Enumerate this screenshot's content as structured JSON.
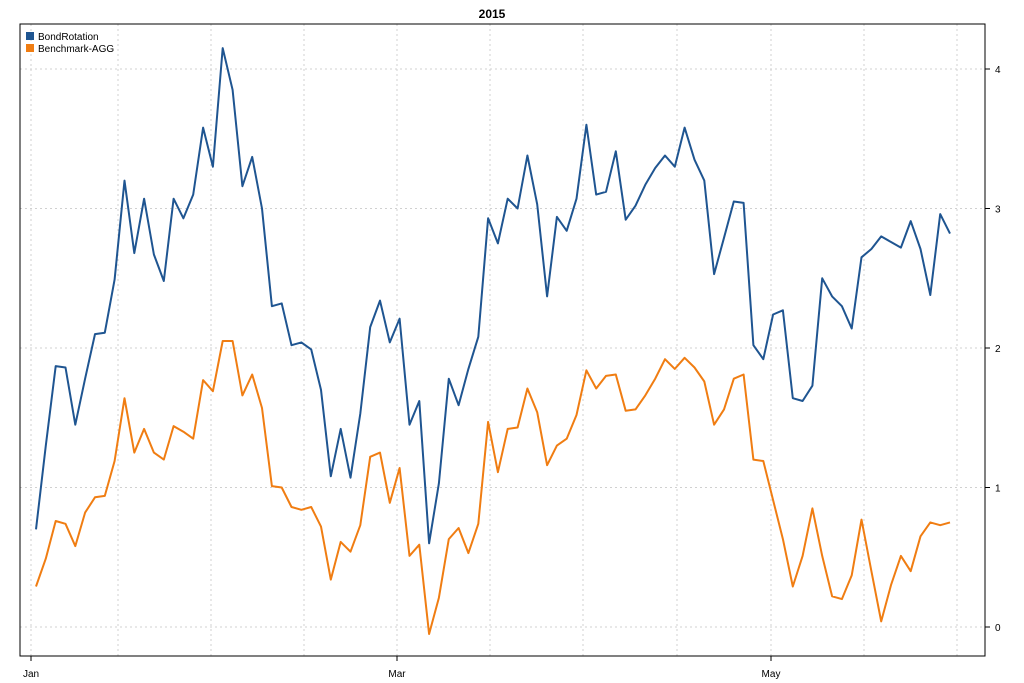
{
  "chart_data": {
    "type": "line",
    "title": "2015",
    "xlabel": "",
    "ylabel": "",
    "x_ticks": [
      "Jan",
      "Mar",
      "May"
    ],
    "y_ticks": [
      "0",
      "1",
      "2",
      "3",
      "4"
    ],
    "ylim": [
      -0.05,
      4.2
    ],
    "y_axis_side": "right",
    "grid": true,
    "legend_position": "top-left",
    "series": [
      {
        "name": "BondRotation",
        "color": "#1f5591",
        "values": [
          0.7,
          1.3,
          1.87,
          1.86,
          1.45,
          1.78,
          2.1,
          2.11,
          2.49,
          3.2,
          2.68,
          3.07,
          2.67,
          2.48,
          3.07,
          2.93,
          3.1,
          3.58,
          3.3,
          4.15,
          3.85,
          3.16,
          3.37,
          3.0,
          2.3,
          2.32,
          2.02,
          2.04,
          1.99,
          1.7,
          1.08,
          1.42,
          1.07,
          1.53,
          2.15,
          2.34,
          2.04,
          2.21,
          1.45,
          1.62,
          0.6,
          1.03,
          1.78,
          1.59,
          1.85,
          2.08,
          2.93,
          2.75,
          3.07,
          3.0,
          3.38,
          3.03,
          2.37,
          2.94,
          2.84,
          3.07,
          3.6,
          3.1,
          3.12,
          3.41,
          2.92,
          3.02,
          3.17,
          3.29,
          3.38,
          3.3,
          3.58,
          3.35,
          3.2,
          2.53,
          2.79,
          3.05,
          3.04,
          2.02,
          1.92,
          2.24,
          2.27,
          1.64,
          1.62,
          1.73,
          2.5,
          2.37,
          2.3,
          2.14,
          2.65,
          2.71,
          2.8,
          2.76,
          2.72,
          2.91,
          2.71,
          2.38,
          2.96,
          2.82
        ]
      },
      {
        "name": "Benchmark-AGG",
        "color": "#f07d12",
        "values": [
          0.29,
          0.49,
          0.76,
          0.74,
          0.58,
          0.82,
          0.93,
          0.94,
          1.19,
          1.64,
          1.25,
          1.42,
          1.25,
          1.2,
          1.44,
          1.4,
          1.35,
          1.77,
          1.69,
          2.05,
          2.05,
          1.66,
          1.81,
          1.57,
          1.01,
          1.0,
          0.86,
          0.84,
          0.86,
          0.72,
          0.34,
          0.61,
          0.54,
          0.73,
          1.22,
          1.25,
          0.89,
          1.14,
          0.51,
          0.59,
          -0.05,
          0.21,
          0.63,
          0.71,
          0.53,
          0.74,
          1.47,
          1.11,
          1.42,
          1.43,
          1.71,
          1.54,
          1.16,
          1.3,
          1.35,
          1.52,
          1.84,
          1.71,
          1.8,
          1.81,
          1.55,
          1.56,
          1.66,
          1.78,
          1.92,
          1.85,
          1.93,
          1.86,
          1.76,
          1.45,
          1.56,
          1.78,
          1.81,
          1.2,
          1.19,
          0.91,
          0.63,
          0.29,
          0.51,
          0.85,
          0.51,
          0.22,
          0.2,
          0.37,
          0.77,
          0.4,
          0.04,
          0.3,
          0.51,
          0.4,
          0.65,
          0.75,
          0.73,
          0.75
        ]
      }
    ]
  }
}
